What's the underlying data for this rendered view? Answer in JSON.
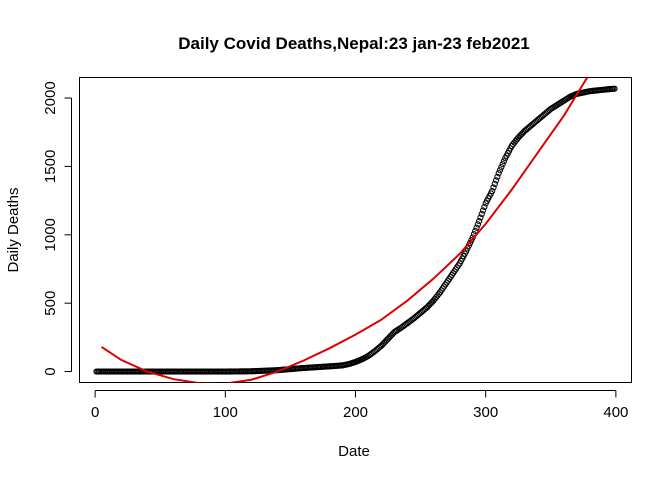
{
  "chart_data": {
    "type": "scatter",
    "title": "Daily Covid Deaths,Nepal:23 jan-23 feb2021",
    "xlabel": "Date",
    "ylabel": "Daily Deaths",
    "xlim": [
      -12,
      412
    ],
    "ylim": [
      -80,
      2150
    ],
    "x_ticks": [
      0,
      100,
      200,
      300,
      400
    ],
    "y_ticks": [
      0,
      500,
      1000,
      1500,
      2000
    ],
    "series": [
      {
        "kind": "points",
        "x_range": [
          1,
          399
        ],
        "x": [
          1,
          50,
          100,
          120,
          140,
          150,
          160,
          170,
          180,
          190,
          195,
          200,
          205,
          210,
          215,
          220,
          225,
          230,
          235,
          240,
          245,
          250,
          255,
          260,
          265,
          270,
          275,
          280,
          285,
          290,
          295,
          300,
          305,
          310,
          315,
          320,
          325,
          330,
          335,
          340,
          345,
          350,
          355,
          360,
          365,
          370,
          375,
          380,
          385,
          390,
          395,
          399
        ],
        "y": [
          0,
          0,
          0,
          2,
          10,
          18,
          26,
          32,
          38,
          45,
          55,
          70,
          90,
          115,
          150,
          190,
          240,
          290,
          320,
          355,
          390,
          430,
          470,
          520,
          580,
          650,
          720,
          790,
          880,
          980,
          1100,
          1230,
          1320,
          1450,
          1560,
          1650,
          1710,
          1760,
          1800,
          1840,
          1880,
          1920,
          1950,
          1980,
          2010,
          2030,
          2040,
          2050,
          2055,
          2060,
          2065,
          2068
        ]
      },
      {
        "kind": "line",
        "color": "#dd0000",
        "x": [
          5,
          20,
          40,
          60,
          80,
          100,
          120,
          140,
          160,
          180,
          200,
          220,
          240,
          260,
          280,
          300,
          320,
          340,
          360,
          378
        ],
        "y": [
          180,
          85,
          0,
          -55,
          -85,
          -88,
          -60,
          0,
          80,
          170,
          270,
          380,
          520,
          680,
          860,
          1080,
          1330,
          1600,
          1870,
          2150
        ]
      }
    ]
  }
}
